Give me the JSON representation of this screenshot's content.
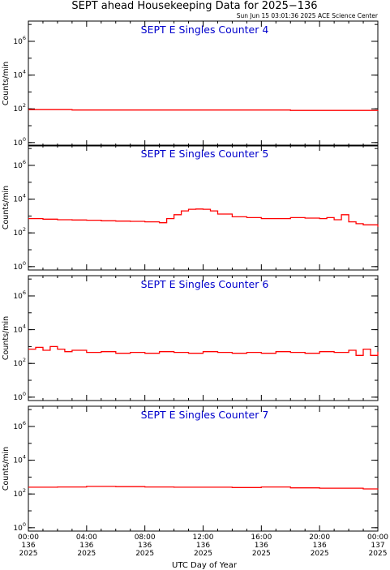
{
  "title": "SEPT ahead Housekeeping Data for 2025−136",
  "subtitle": "Sun Jun 15 03:01:36 2025 ACE Science Center",
  "colors": {
    "series": "#ff0000",
    "panel_title": "#0000cc",
    "axes": "#000000"
  },
  "chart_data": [
    {
      "type": "line",
      "title": "SEPT E Singles Counter 4",
      "ylabel": "Counts/min",
      "yscale": "log",
      "ylim_exp": [
        -0.2,
        7.2
      ],
      "ytick_labels": [
        {
          "base": "10",
          "exp": "0"
        },
        {
          "base": "10",
          "exp": "2"
        },
        {
          "base": "10",
          "exp": "4"
        },
        {
          "base": "10",
          "exp": "6"
        }
      ],
      "xlim_hours": [
        0,
        24
      ],
      "series": [
        {
          "x_hours": [
            0,
            3,
            6,
            9,
            12,
            15,
            18,
            21,
            24
          ],
          "y": [
            90,
            85,
            85,
            85,
            85,
            85,
            80,
            80,
            85
          ]
        }
      ]
    },
    {
      "type": "line",
      "title": "SEPT E Singles Counter 5",
      "ylabel": "Counts/min",
      "yscale": "log",
      "ylim_exp": [
        -0.2,
        7.2
      ],
      "ytick_labels": [
        {
          "base": "10",
          "exp": "0"
        },
        {
          "base": "10",
          "exp": "2"
        },
        {
          "base": "10",
          "exp": "4"
        },
        {
          "base": "10",
          "exp": "6"
        }
      ],
      "xlim_hours": [
        0,
        24
      ],
      "series": [
        {
          "x_hours": [
            0,
            1,
            2,
            3,
            4,
            5,
            6,
            7,
            8,
            9,
            9.5,
            10,
            10.5,
            11,
            11.5,
            12,
            12.5,
            13,
            14,
            15,
            16,
            17,
            18,
            19,
            20,
            20.5,
            21,
            21.5,
            22,
            22.5,
            23,
            24
          ],
          "y": [
            700,
            650,
            600,
            580,
            560,
            520,
            500,
            480,
            450,
            400,
            700,
            1200,
            2000,
            2500,
            2600,
            2500,
            2000,
            1300,
            900,
            800,
            700,
            700,
            800,
            750,
            700,
            800,
            600,
            1200,
            450,
            350,
            300,
            230
          ]
        }
      ]
    },
    {
      "type": "line",
      "title": "SEPT E Singles Counter 6",
      "ylabel": "Counts/min",
      "yscale": "log",
      "ylim_exp": [
        -0.2,
        7.2
      ],
      "ytick_labels": [
        {
          "base": "10",
          "exp": "0"
        },
        {
          "base": "10",
          "exp": "2"
        },
        {
          "base": "10",
          "exp": "4"
        },
        {
          "base": "10",
          "exp": "6"
        }
      ],
      "xlim_hours": [
        0,
        24
      ],
      "series": [
        {
          "x_hours": [
            0,
            0.5,
            1,
            1.5,
            2,
            2.5,
            3,
            4,
            5,
            6,
            7,
            8,
            9,
            10,
            11,
            12,
            13,
            14,
            15,
            16,
            17,
            18,
            19,
            20,
            21,
            22,
            22.5,
            23,
            23.5,
            24
          ],
          "y": [
            700,
            900,
            600,
            1000,
            700,
            500,
            600,
            450,
            500,
            400,
            450,
            400,
            500,
            450,
            400,
            500,
            450,
            400,
            450,
            400,
            500,
            450,
            400,
            500,
            450,
            600,
            300,
            700,
            300,
            500
          ]
        }
      ]
    },
    {
      "type": "line",
      "title": "SEPT E Singles Counter 7",
      "ylabel": "Counts/min",
      "yscale": "log",
      "ylim_exp": [
        -0.2,
        7.2
      ],
      "ytick_labels": [
        {
          "base": "10",
          "exp": "0"
        },
        {
          "base": "10",
          "exp": "2"
        },
        {
          "base": "10",
          "exp": "4"
        },
        {
          "base": "10",
          "exp": "6"
        }
      ],
      "xlim_hours": [
        0,
        24
      ],
      "series": [
        {
          "x_hours": [
            0,
            2,
            4,
            6,
            8,
            10,
            12,
            14,
            16,
            18,
            20,
            22,
            23,
            24
          ],
          "y": [
            250,
            260,
            280,
            270,
            260,
            250,
            250,
            240,
            260,
            230,
            220,
            220,
            200,
            210
          ]
        }
      ]
    }
  ],
  "xaxis": {
    "label": "UTC Day of Year",
    "ticks": [
      {
        "time": "00:00",
        "doy": "136",
        "year": "2025"
      },
      {
        "time": "04:00",
        "doy": "136",
        "year": "2025"
      },
      {
        "time": "08:00",
        "doy": "136",
        "year": "2025"
      },
      {
        "time": "12:00",
        "doy": "136",
        "year": "2025"
      },
      {
        "time": "16:00",
        "doy": "136",
        "year": "2025"
      },
      {
        "time": "20:00",
        "doy": "136",
        "year": "2025"
      },
      {
        "time": "00:00",
        "doy": "137",
        "year": "2025"
      }
    ]
  }
}
